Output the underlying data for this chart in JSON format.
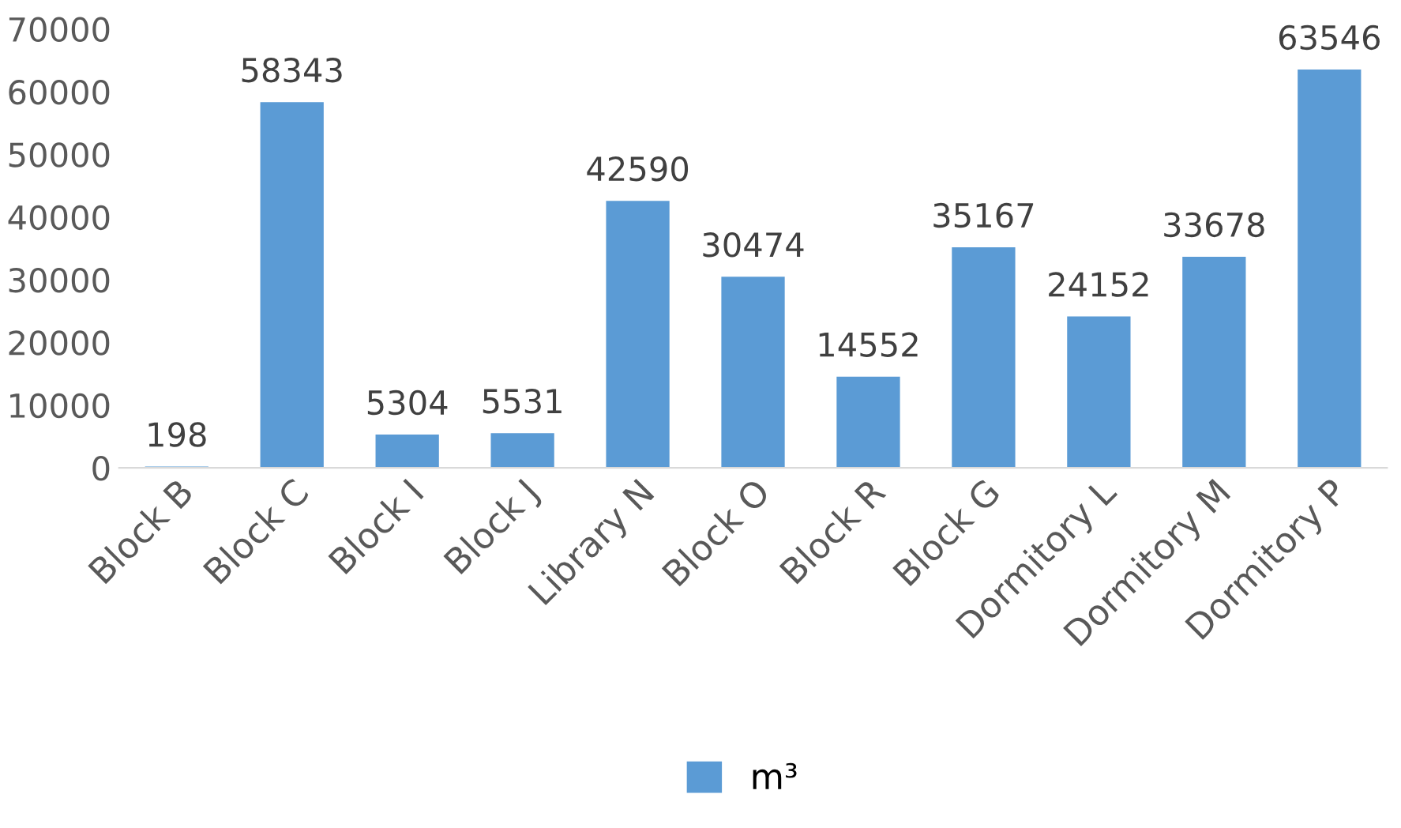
{
  "chart_data": {
    "type": "bar",
    "categories": [
      "Block B",
      "Block C",
      "Block I",
      "Block J",
      "Library N",
      "Block O",
      "Block R",
      "Block G",
      "Dormitory L",
      "Dormitory M",
      "Dormitory P"
    ],
    "series": [
      {
        "name": "m³",
        "color": "#5b9bd5",
        "values": [
          198,
          58343,
          5304,
          5531,
          42590,
          30474,
          14552,
          35167,
          24152,
          33678,
          63546
        ]
      }
    ],
    "ylim": [
      0,
      70000
    ],
    "yticks": [
      0,
      10000,
      20000,
      30000,
      40000,
      50000,
      60000,
      70000
    ],
    "grid": false,
    "legend": "bottom",
    "data_labels": true
  }
}
